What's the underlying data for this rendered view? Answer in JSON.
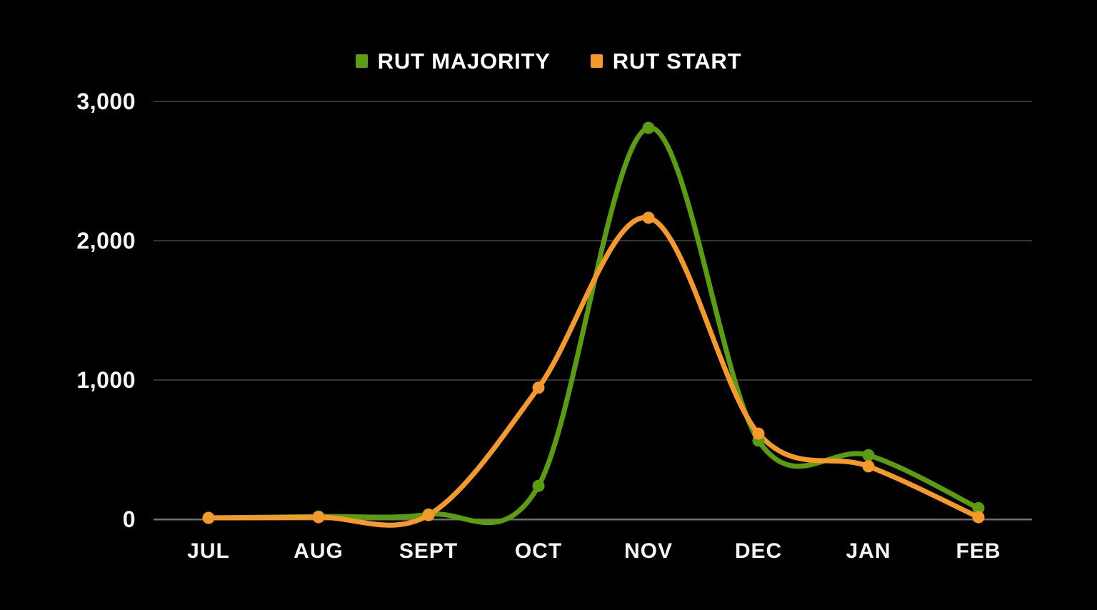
{
  "legend": {
    "position": "top",
    "items": [
      {
        "label": "RUT MAJORITY",
        "color": "#5b9c10"
      },
      {
        "label": "RUT START",
        "color": "#f6992b"
      }
    ]
  },
  "chart_data": {
    "type": "line",
    "smooth": true,
    "title": "",
    "xlabel": "",
    "ylabel": "",
    "categories": [
      "JUL",
      "AUG",
      "SEPT",
      "OCT",
      "NOV",
      "DEC",
      "JAN",
      "FEB"
    ],
    "series": [
      {
        "name": "RUT MAJORITY",
        "color": "#5b9c10",
        "values": [
          10,
          20,
          35,
          240,
          2810,
          565,
          460,
          80
        ]
      },
      {
        "name": "RUT START",
        "color": "#f6992b",
        "values": [
          10,
          15,
          30,
          945,
          2165,
          615,
          380,
          15
        ]
      }
    ],
    "ylim": [
      0,
      3000
    ],
    "yticks": [
      {
        "value": 0,
        "label": "0"
      },
      {
        "value": 1000,
        "label": "1,000"
      },
      {
        "value": 2000,
        "label": "2,000"
      },
      {
        "value": 3000,
        "label": "3,000"
      }
    ],
    "grid": true,
    "legend_position": "top",
    "background_color": "#000000",
    "gridline_color": "#343434",
    "zero_line_color": "#707070",
    "text_color": "#f5f5f5"
  }
}
